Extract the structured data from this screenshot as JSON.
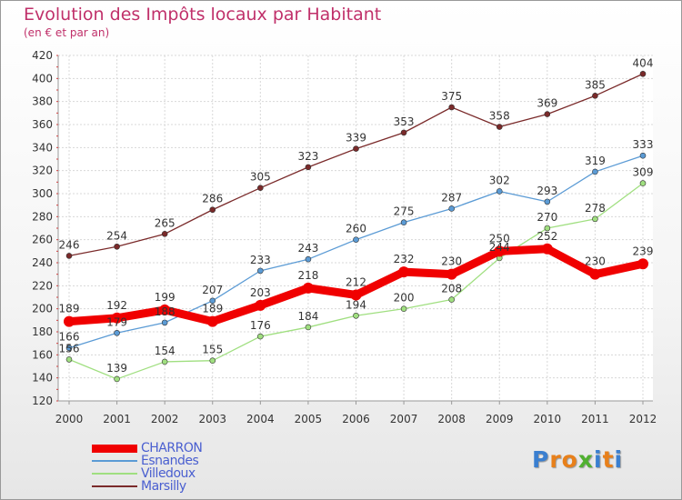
{
  "header": {
    "title": "Evolution des Impôts locaux par Habitant",
    "subtitle": "(en € et par an)"
  },
  "logo": {
    "letters": [
      "P",
      "r",
      "o",
      "x",
      "i",
      "t",
      "i"
    ],
    "colors": [
      "#3a7fd0",
      "#e8801a",
      "#e8801a",
      "#50b030",
      "#3a7fd0",
      "#e8801a",
      "#3a7fd0"
    ]
  },
  "chart_data": {
    "type": "line",
    "x": [
      "2000",
      "2001",
      "2002",
      "2003",
      "2004",
      "2005",
      "2006",
      "2007",
      "2008",
      "2009",
      "2010",
      "2011",
      "2012"
    ],
    "ylim": [
      120,
      420
    ],
    "yticks": [
      120,
      140,
      160,
      180,
      200,
      220,
      240,
      260,
      280,
      300,
      320,
      340,
      360,
      380,
      400,
      420
    ],
    "grid": true,
    "legend_position": "bottom-left",
    "series": [
      {
        "name": "Marsilly",
        "color": "#7a2a2a",
        "values": [
          246,
          254,
          265,
          286,
          305,
          323,
          339,
          353,
          375,
          358,
          369,
          385,
          404
        ]
      },
      {
        "name": "Esnandes",
        "color": "#5b9bd5",
        "values": [
          166,
          179,
          188,
          207,
          233,
          243,
          260,
          275,
          287,
          302,
          293,
          319,
          333
        ]
      },
      {
        "name": "Villedoux",
        "color": "#a0df80",
        "values": [
          156,
          139,
          154,
          155,
          176,
          184,
          194,
          200,
          208,
          244,
          270,
          278,
          309
        ]
      },
      {
        "name": "CHARRON",
        "color": "#f00000",
        "values": [
          189,
          192,
          199,
          189,
          203,
          218,
          212,
          232,
          230,
          250,
          252,
          230,
          239
        ]
      }
    ],
    "legend_order": [
      "CHARRON",
      "Esnandes",
      "Villedoux",
      "Marsilly"
    ]
  }
}
